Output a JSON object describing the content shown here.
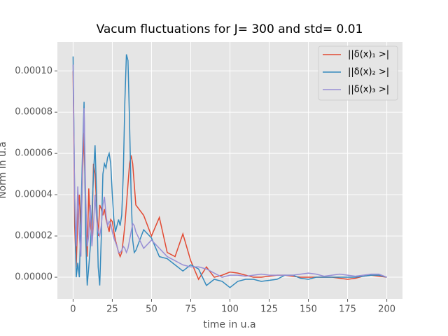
{
  "chart_data": {
    "type": "line",
    "title": "Vacum fluctuations for J= 300 and std= 0.01",
    "xlabel": "time in u.a",
    "ylabel": "Norm in u.a",
    "x": [
      0,
      1,
      2,
      3,
      4,
      5,
      6,
      7,
      8,
      9,
      10,
      11,
      12,
      13,
      14,
      15,
      16,
      17,
      18,
      19,
      20,
      21,
      22,
      23,
      24,
      25,
      26,
      27,
      28,
      29,
      30,
      31,
      32,
      33,
      34,
      35,
      36,
      37,
      38,
      39,
      40,
      45,
      50,
      55,
      60,
      65,
      70,
      75,
      80,
      85,
      90,
      95,
      100,
      105,
      110,
      115,
      120,
      125,
      130,
      135,
      140,
      145,
      150,
      155,
      160,
      165,
      170,
      175,
      180,
      185,
      190,
      195,
      200
    ],
    "series": [
      {
        "name": "||δ(x)₁ >|",
        "color": "#E24A33",
        "values": [
          0.0001,
          2.5e-05,
          5e-06,
          3e-05,
          4e-05,
          2e-05,
          5e-05,
          7e-05,
          3e-05,
          1e-05,
          4.3e-05,
          2.5e-05,
          2e-05,
          5.5e-05,
          5e-05,
          3.5e-05,
          2e-05,
          3.5e-05,
          3.3e-05,
          3e-05,
          3.3e-05,
          2.8e-05,
          2.5e-05,
          2.2e-05,
          2.8e-05,
          2.7e-05,
          2.2e-05,
          1.8e-05,
          1.5e-05,
          1.2e-05,
          1e-05,
          1.2e-05,
          1.8e-05,
          2.5e-05,
          3.5e-05,
          4.5e-05,
          5.5e-05,
          5.9e-05,
          5.5e-05,
          4.5e-05,
          3.5e-05,
          3e-05,
          2e-05,
          2.9e-05,
          1.2e-05,
          1e-05,
          2.1e-05,
          8e-06,
          -1e-06,
          5e-06,
          0,
          1e-06,
          2.5e-06,
          2e-06,
          1e-06,
          0,
          0,
          5e-07,
          1e-06,
          1e-06,
          5e-07,
          0,
          0,
          0,
          0,
          0,
          -5e-07,
          -1e-06,
          -5e-07,
          5e-07,
          1e-06,
          5e-07,
          0
        ]
      },
      {
        "name": "||δ(x)₂ >|",
        "color": "#348ABD",
        "values": [
          0.000107,
          4e-05,
          0,
          7e-06,
          0,
          3e-05,
          6e-05,
          8.5e-05,
          2e-05,
          -4e-06,
          5e-06,
          1.5e-05,
          3e-05,
          5e-05,
          6.4e-05,
          4e-05,
          5e-06,
          -4e-06,
          2e-05,
          5e-05,
          5.5e-05,
          5.3e-05,
          5.8e-05,
          6e-05,
          5.5e-05,
          4e-05,
          2.8e-05,
          2.2e-05,
          2.5e-05,
          2.8e-05,
          2.5e-05,
          3e-05,
          5e-05,
          8.5e-05,
          0.000108,
          0.000105,
          7.5e-05,
          4e-05,
          1.8e-05,
          1.2e-05,
          1.3e-05,
          2.3e-05,
          1.9e-05,
          1e-05,
          9e-06,
          6e-06,
          3e-06,
          6e-06,
          4e-06,
          -4e-06,
          -1e-06,
          -2e-06,
          -5e-06,
          -2e-06,
          -1e-06,
          -1e-06,
          -2e-06,
          -1.5e-06,
          -1e-06,
          1e-06,
          1e-06,
          -5e-07,
          -1e-06,
          0,
          0,
          0,
          0,
          0,
          0,
          5e-07,
          1e-06,
          1e-06,
          0
        ]
      },
      {
        "name": "||δ(x)₃ >|",
        "color": "#988ED5",
        "values": [
          0.000103,
          4e-05,
          1.5e-05,
          4.4e-05,
          2e-05,
          1e-05,
          5.5e-05,
          8.2e-05,
          4e-05,
          1.5e-05,
          2e-05,
          3.5e-05,
          1.5e-05,
          2.5e-05,
          4e-05,
          2.8e-05,
          2.2e-05,
          2e-05,
          2.5e-05,
          3.5e-05,
          3.9e-05,
          3e-05,
          2.5e-05,
          2.7e-05,
          2.6e-05,
          2.2e-05,
          1.9e-05,
          1.7e-05,
          1.5e-05,
          1.2e-05,
          1.2e-05,
          1.3e-05,
          1.5e-05,
          1.4e-05,
          1.2e-05,
          1.4e-05,
          1.8e-05,
          2.2e-05,
          2.6e-05,
          2.5e-05,
          2.2e-05,
          1.4e-05,
          1.8e-05,
          1.4e-05,
          1e-05,
          8e-06,
          6e-06,
          5e-06,
          5e-06,
          4e-06,
          2e-06,
          0,
          1e-06,
          1e-06,
          5e-07,
          1e-06,
          1.5e-06,
          1e-06,
          1e-06,
          1e-06,
          1e-06,
          1.5e-06,
          2e-06,
          1.5e-06,
          5e-07,
          1e-06,
          1.5e-06,
          1e-06,
          5e-07,
          1e-06,
          1.5e-06,
          1.5e-06,
          0
        ]
      }
    ],
    "xlim": [
      -10,
      210
    ],
    "ylim": [
      -1.05e-05,
      0.000114
    ],
    "xticks": [
      0,
      25,
      50,
      75,
      100,
      125,
      150,
      175,
      200
    ],
    "yticks": [
      {
        "value": 0,
        "label": "0.00000"
      },
      {
        "value": 2e-05,
        "label": "0.00002"
      },
      {
        "value": 4e-05,
        "label": "0.00004"
      },
      {
        "value": 6e-05,
        "label": "0.00006"
      },
      {
        "value": 8e-05,
        "label": "0.00008"
      },
      {
        "value": 0.0001,
        "label": "0.00010"
      }
    ],
    "grid": true,
    "legend": "upper right"
  }
}
